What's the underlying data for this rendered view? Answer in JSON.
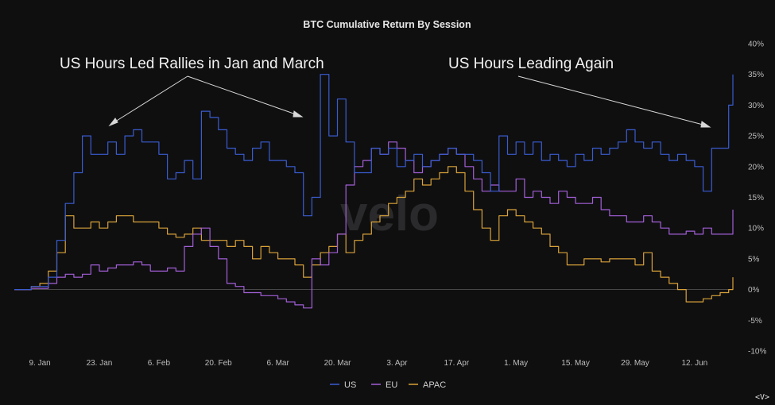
{
  "chart_data": {
    "type": "line",
    "title": "BTC Cumulative Return By Session",
    "ylim": [
      -10,
      40
    ],
    "yticks": [
      "40%",
      "35%",
      "30%",
      "25%",
      "20%",
      "15%",
      "10%",
      "5%",
      "0%",
      "-5%",
      "-10%"
    ],
    "xticks": [
      "9. Jan",
      "23. Jan",
      "6. Feb",
      "20. Feb",
      "6. Mar",
      "20. Mar",
      "3. Apr",
      "17. Apr",
      "1. May",
      "15. May",
      "29. May",
      "12. Jun"
    ],
    "x_day_range": [
      0,
      169
    ],
    "xtick_days": [
      6,
      20,
      34,
      48,
      62,
      76,
      90,
      104,
      118,
      132,
      146,
      160
    ],
    "legend": [
      {
        "name": "US",
        "color": "#3a5ccf"
      },
      {
        "name": "EU",
        "color": "#a25fd6"
      },
      {
        "name": "APAC",
        "color": "#d9a238"
      }
    ],
    "annotations": [
      "US Hours Led Rallies in Jan and March",
      "US Hours Leading Again"
    ],
    "watermark": "velo",
    "series": [
      {
        "name": "US",
        "color": "#3a5ccf",
        "points": [
          [
            0,
            0
          ],
          [
            4,
            0.5
          ],
          [
            8,
            2
          ],
          [
            10,
            8
          ],
          [
            12,
            14
          ],
          [
            14,
            19
          ],
          [
            16,
            25
          ],
          [
            18,
            22
          ],
          [
            20,
            22
          ],
          [
            22,
            24
          ],
          [
            24,
            22
          ],
          [
            26,
            25
          ],
          [
            28,
            26
          ],
          [
            30,
            24
          ],
          [
            32,
            24
          ],
          [
            34,
            22
          ],
          [
            36,
            18
          ],
          [
            38,
            19
          ],
          [
            40,
            21
          ],
          [
            42,
            18
          ],
          [
            44,
            29
          ],
          [
            46,
            28
          ],
          [
            48,
            26
          ],
          [
            50,
            23
          ],
          [
            52,
            22
          ],
          [
            54,
            21
          ],
          [
            56,
            23
          ],
          [
            58,
            24
          ],
          [
            60,
            21
          ],
          [
            62,
            21
          ],
          [
            64,
            20
          ],
          [
            66,
            19
          ],
          [
            68,
            12
          ],
          [
            70,
            15
          ],
          [
            72,
            35
          ],
          [
            74,
            25
          ],
          [
            76,
            31
          ],
          [
            78,
            24
          ],
          [
            80,
            19
          ],
          [
            82,
            19
          ],
          [
            84,
            23
          ],
          [
            86,
            22
          ],
          [
            88,
            23
          ],
          [
            90,
            20
          ],
          [
            92,
            21
          ],
          [
            94,
            22
          ],
          [
            96,
            20
          ],
          [
            98,
            21
          ],
          [
            100,
            22
          ],
          [
            102,
            23
          ],
          [
            104,
            22
          ],
          [
            106,
            22
          ],
          [
            108,
            21
          ],
          [
            110,
            19
          ],
          [
            112,
            16
          ],
          [
            114,
            25
          ],
          [
            116,
            22
          ],
          [
            118,
            24
          ],
          [
            120,
            22
          ],
          [
            122,
            24
          ],
          [
            124,
            21
          ],
          [
            126,
            22
          ],
          [
            128,
            21
          ],
          [
            130,
            20
          ],
          [
            132,
            22
          ],
          [
            134,
            21
          ],
          [
            136,
            23
          ],
          [
            138,
            22
          ],
          [
            140,
            23
          ],
          [
            142,
            24
          ],
          [
            144,
            26
          ],
          [
            146,
            24
          ],
          [
            148,
            23
          ],
          [
            150,
            24
          ],
          [
            152,
            22
          ],
          [
            154,
            21
          ],
          [
            156,
            22
          ],
          [
            158,
            21
          ],
          [
            160,
            20
          ],
          [
            162,
            16
          ],
          [
            164,
            23
          ],
          [
            166,
            23
          ],
          [
            168,
            30
          ],
          [
            169,
            35
          ]
        ]
      },
      {
        "name": "EU",
        "color": "#a25fd6",
        "points": [
          [
            0,
            0
          ],
          [
            4,
            0.2
          ],
          [
            8,
            1
          ],
          [
            10,
            2
          ],
          [
            12,
            2.5
          ],
          [
            14,
            2
          ],
          [
            16,
            2.5
          ],
          [
            18,
            4
          ],
          [
            20,
            3
          ],
          [
            22,
            3.5
          ],
          [
            24,
            4
          ],
          [
            26,
            4
          ],
          [
            28,
            4.5
          ],
          [
            30,
            4
          ],
          [
            32,
            3
          ],
          [
            34,
            3
          ],
          [
            36,
            3.5
          ],
          [
            38,
            3
          ],
          [
            40,
            7
          ],
          [
            42,
            9
          ],
          [
            44,
            10
          ],
          [
            46,
            7
          ],
          [
            48,
            5
          ],
          [
            50,
            1
          ],
          [
            52,
            0.5
          ],
          [
            54,
            -0.5
          ],
          [
            56,
            -0.5
          ],
          [
            58,
            -1
          ],
          [
            60,
            -1
          ],
          [
            62,
            -1.5
          ],
          [
            64,
            -2
          ],
          [
            66,
            -2.5
          ],
          [
            68,
            -3
          ],
          [
            70,
            5
          ],
          [
            72,
            4
          ],
          [
            74,
            6
          ],
          [
            76,
            9
          ],
          [
            78,
            17
          ],
          [
            80,
            20
          ],
          [
            82,
            21
          ],
          [
            84,
            23
          ],
          [
            86,
            22
          ],
          [
            88,
            24
          ],
          [
            90,
            23
          ],
          [
            92,
            21
          ],
          [
            94,
            19
          ],
          [
            96,
            20
          ],
          [
            98,
            21
          ],
          [
            100,
            22
          ],
          [
            102,
            23
          ],
          [
            104,
            22
          ],
          [
            106,
            20
          ],
          [
            108,
            18
          ],
          [
            110,
            16
          ],
          [
            112,
            17
          ],
          [
            114,
            16
          ],
          [
            116,
            16
          ],
          [
            118,
            18
          ],
          [
            120,
            15
          ],
          [
            122,
            16
          ],
          [
            124,
            15
          ],
          [
            126,
            14
          ],
          [
            128,
            16
          ],
          [
            130,
            15
          ],
          [
            132,
            14
          ],
          [
            134,
            14
          ],
          [
            136,
            15
          ],
          [
            138,
            13
          ],
          [
            140,
            12
          ],
          [
            142,
            12
          ],
          [
            144,
            11
          ],
          [
            146,
            11
          ],
          [
            148,
            12
          ],
          [
            150,
            11
          ],
          [
            152,
            10
          ],
          [
            154,
            9
          ],
          [
            156,
            9
          ],
          [
            158,
            9.5
          ],
          [
            160,
            9
          ],
          [
            162,
            10
          ],
          [
            164,
            9
          ],
          [
            166,
            9
          ],
          [
            168,
            9
          ],
          [
            169,
            13
          ]
        ]
      },
      {
        "name": "APAC",
        "color": "#d9a238",
        "points": [
          [
            0,
            0
          ],
          [
            4,
            0.5
          ],
          [
            6,
            1
          ],
          [
            8,
            3
          ],
          [
            10,
            6
          ],
          [
            12,
            12
          ],
          [
            14,
            10
          ],
          [
            16,
            10
          ],
          [
            18,
            11
          ],
          [
            20,
            10
          ],
          [
            22,
            11
          ],
          [
            24,
            12
          ],
          [
            26,
            12
          ],
          [
            28,
            11
          ],
          [
            30,
            11
          ],
          [
            32,
            11
          ],
          [
            34,
            10
          ],
          [
            36,
            9
          ],
          [
            38,
            8.5
          ],
          [
            40,
            9
          ],
          [
            42,
            10
          ],
          [
            44,
            8
          ],
          [
            46,
            8
          ],
          [
            48,
            8
          ],
          [
            50,
            7
          ],
          [
            52,
            8
          ],
          [
            54,
            7
          ],
          [
            56,
            5
          ],
          [
            58,
            7
          ],
          [
            60,
            6
          ],
          [
            62,
            5
          ],
          [
            64,
            5
          ],
          [
            66,
            4
          ],
          [
            68,
            2
          ],
          [
            70,
            4
          ],
          [
            72,
            6
          ],
          [
            74,
            7
          ],
          [
            76,
            9
          ],
          [
            78,
            6
          ],
          [
            80,
            8
          ],
          [
            82,
            9
          ],
          [
            84,
            11
          ],
          [
            86,
            12
          ],
          [
            88,
            14
          ],
          [
            90,
            15
          ],
          [
            92,
            16
          ],
          [
            94,
            18
          ],
          [
            96,
            17
          ],
          [
            98,
            18
          ],
          [
            100,
            19
          ],
          [
            102,
            20
          ],
          [
            104,
            19
          ],
          [
            106,
            16
          ],
          [
            108,
            13
          ],
          [
            110,
            10
          ],
          [
            112,
            8
          ],
          [
            114,
            12
          ],
          [
            116,
            13
          ],
          [
            118,
            12
          ],
          [
            120,
            11
          ],
          [
            122,
            10
          ],
          [
            124,
            9
          ],
          [
            126,
            7
          ],
          [
            128,
            6
          ],
          [
            130,
            4
          ],
          [
            132,
            4
          ],
          [
            134,
            5
          ],
          [
            136,
            5
          ],
          [
            138,
            4.5
          ],
          [
            140,
            5
          ],
          [
            142,
            5
          ],
          [
            144,
            5
          ],
          [
            146,
            4
          ],
          [
            148,
            6
          ],
          [
            150,
            3
          ],
          [
            152,
            2
          ],
          [
            154,
            1
          ],
          [
            156,
            0
          ],
          [
            158,
            -2
          ],
          [
            160,
            -2
          ],
          [
            162,
            -1.5
          ],
          [
            164,
            -1
          ],
          [
            166,
            -0.5
          ],
          [
            168,
            0
          ],
          [
            169,
            2
          ]
        ]
      }
    ]
  },
  "corner_mark": "<V>"
}
